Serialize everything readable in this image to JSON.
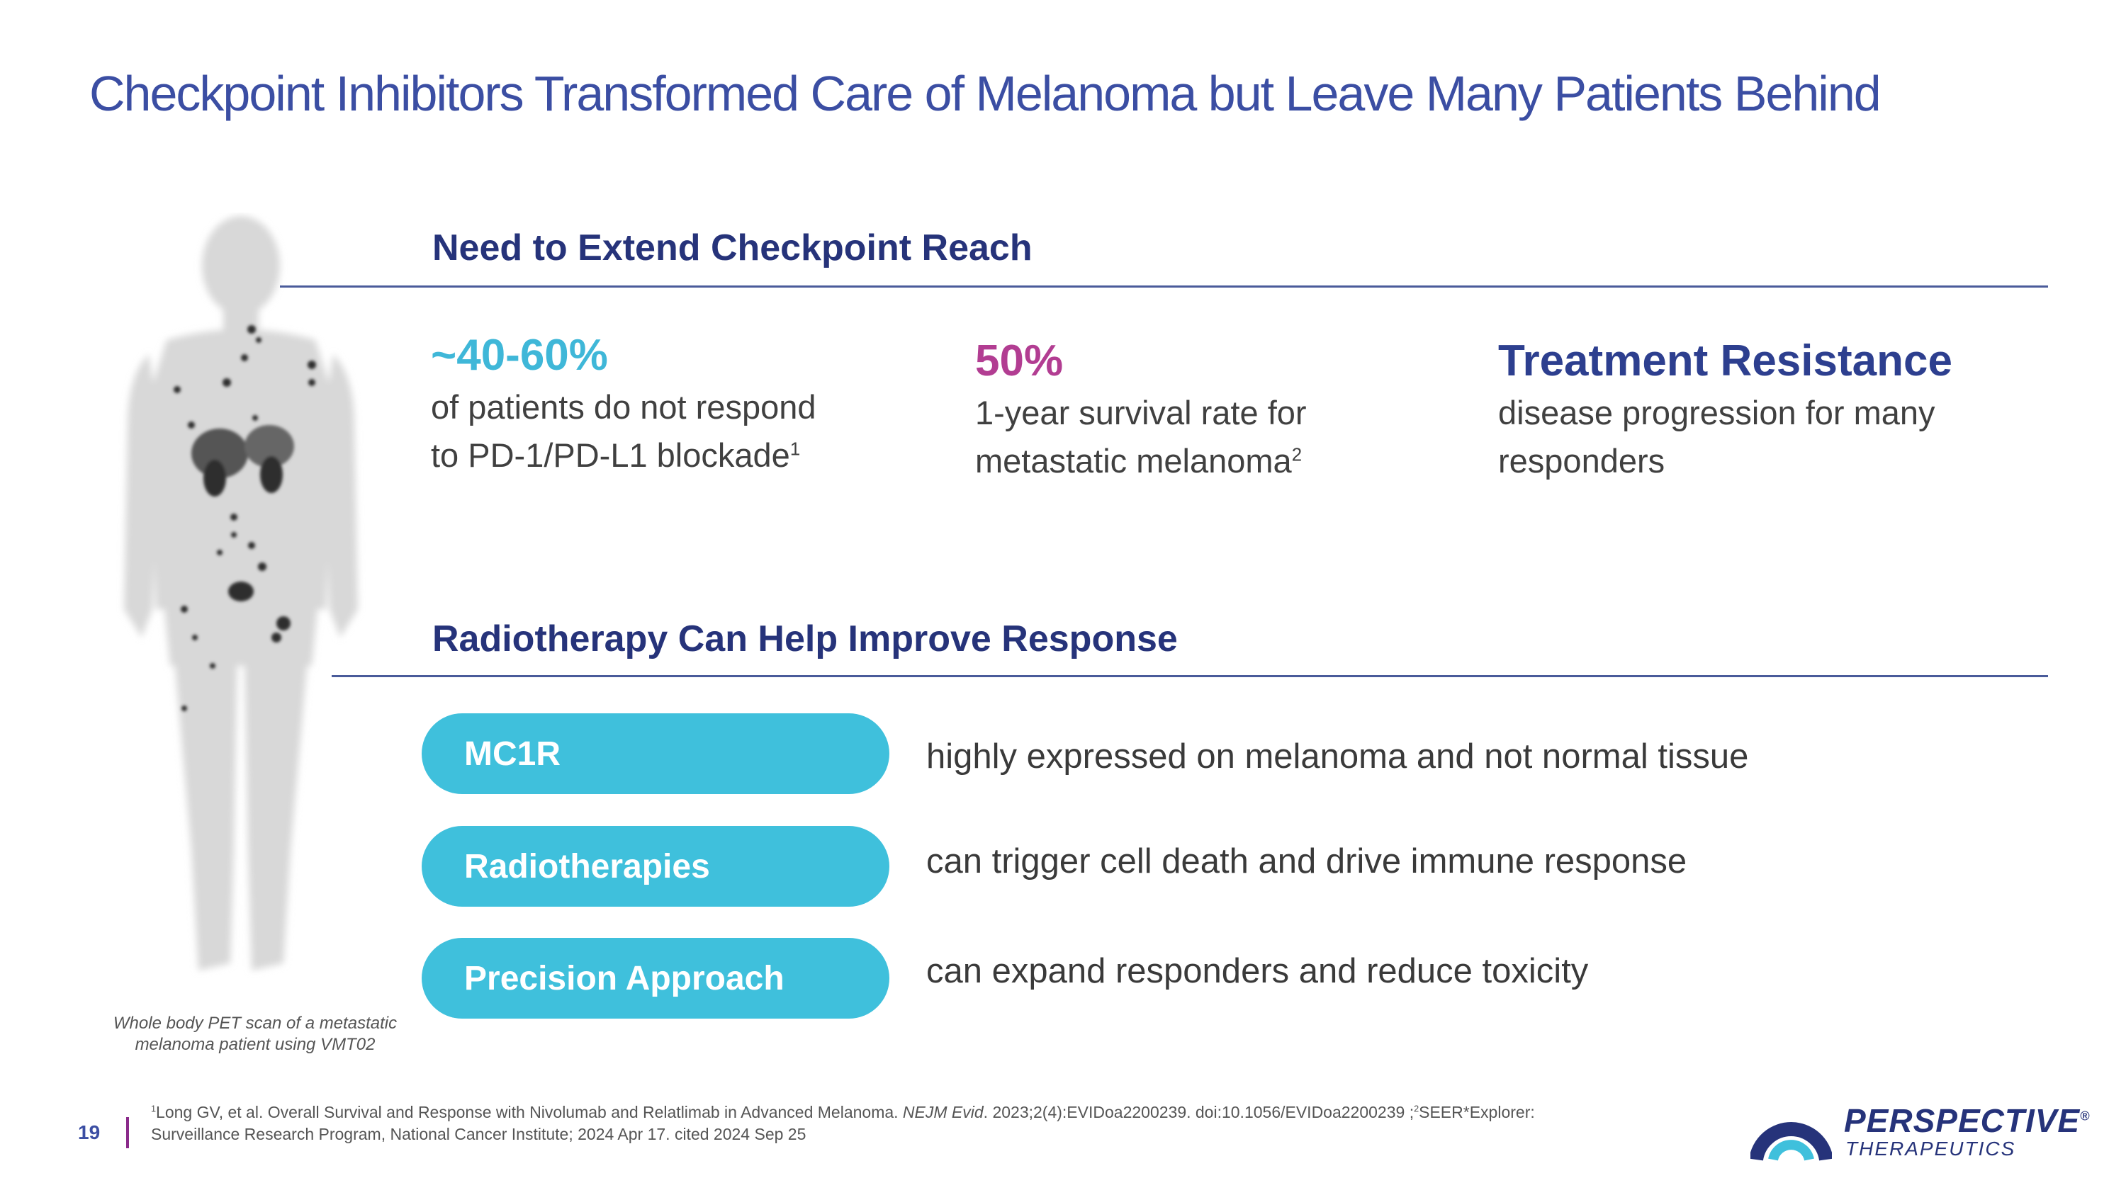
{
  "title": "Checkpoint Inhibitors Transformed Care of Melanoma but Leave Many Patients Behind",
  "section1": {
    "heading": "Need to Extend Checkpoint Reach",
    "stats": [
      {
        "big": "~40-60%",
        "line1": "of patients do not respond",
        "line2": "to PD-1/PD-L1 blockade",
        "sup": "1",
        "color": "#3fb7d8"
      },
      {
        "big": "50%",
        "line1": "1-year survival rate for",
        "line2": "metastatic melanoma",
        "sup": "2",
        "color": "#b23d92"
      },
      {
        "big": "Treatment Resistance",
        "line1": "disease progression for many",
        "line2": "responders",
        "sup": "",
        "color": "#2d3f8f"
      }
    ]
  },
  "section2": {
    "heading": "Radiotherapy Can Help Improve Response",
    "rows": [
      {
        "label": "MC1R",
        "desc": "highly expressed on melanoma and not normal tissue"
      },
      {
        "label": "Radiotherapies",
        "desc": "can trigger cell death and drive immune response"
      },
      {
        "label": "Precision Approach",
        "desc": "can expand responders and reduce toxicity"
      }
    ]
  },
  "image_caption": {
    "line1": "Whole body PET scan of a metastatic",
    "line2": "melanoma patient using VMT02"
  },
  "footer": {
    "page": "19",
    "ref1_num": "1",
    "ref1_text": "Long GV, et al. Overall Survival and Response with Nivolumab and Relatlimab in Advanced Melanoma. ",
    "ref1_journal": "NEJM Evid",
    "ref1_rest": ". 2023;2(4):EVIDoa2200239. doi:10.1056/EVIDoa2200239 ;",
    "ref2_num": "2",
    "ref2_text": "SEER*Explorer:",
    "ref2_line2": "Surveillance Research Program, National Cancer Institute; 2024 Apr 17. cited 2024 Sep 25"
  },
  "logo": {
    "name": "PERSPECTIVE",
    "reg": "®",
    "sub": "THERAPEUTICS"
  },
  "colors": {
    "title": "#3b4ea3",
    "heading": "#26337a",
    "pill": "#3fc0dc",
    "accent_magenta": "#8a2a8a"
  },
  "icons": {
    "body_scan": "pet-scan-figure",
    "logo_mark": "perspective-logo-icon"
  }
}
